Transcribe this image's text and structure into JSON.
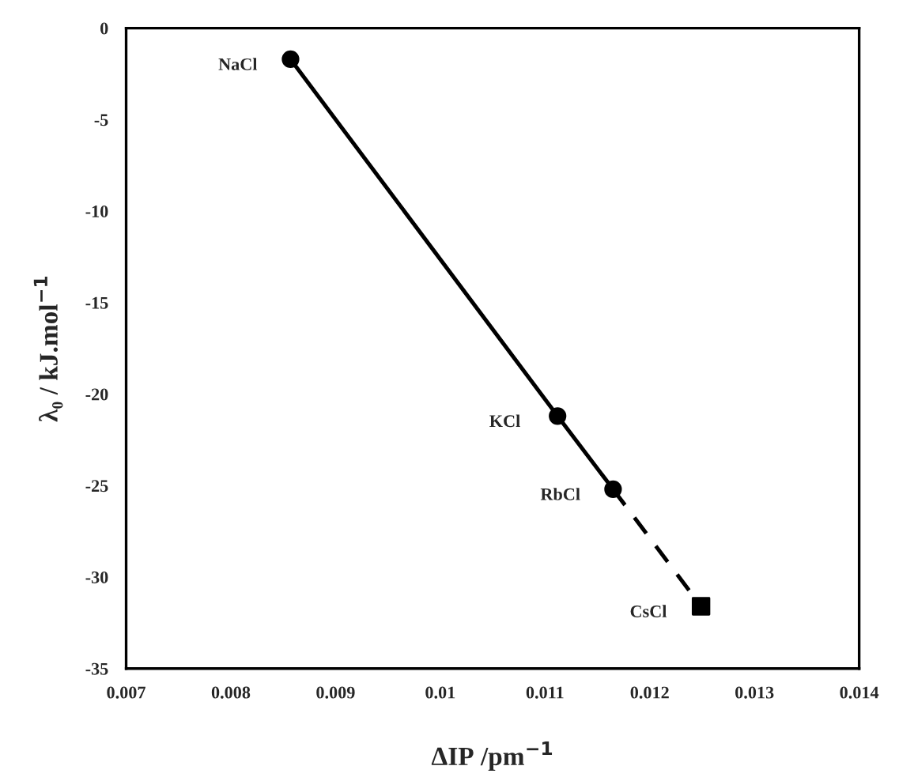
{
  "chart_data": {
    "type": "line",
    "xlabel": "ΔIP /pm$^{−1}$",
    "ylabel": "λ₀ / kJ.mol$^{−1}$",
    "series": [
      {
        "color": "#000000",
        "marker": "circle",
        "line_style": "solid",
        "x": [
          0.00857,
          0.01112,
          0.01165
        ],
        "values": [
          -1.7,
          -21.2,
          -25.2
        ]
      },
      {
        "type": "line",
        "color": "#000000",
        "marker": "none",
        "line_style": "dashed",
        "x": [
          0.01165,
          0.01249
        ],
        "values": [
          -25.2,
          -31.6
        ]
      },
      {
        "type": "scatter",
        "color": "#000000",
        "marker": "square",
        "x": [
          0.01249
        ],
        "values": [
          -31.6
        ]
      }
    ],
    "annotations": [
      {
        "text": "NaCl",
        "x": 0.00857,
        "y": -1.7
      },
      {
        "text": "KCl",
        "x": 0.01112,
        "y": -21.2
      },
      {
        "text": "RbCl",
        "x": 0.01165,
        "y": -25.2
      },
      {
        "text": "CsCl",
        "x": 0.01249,
        "y": -31.6
      }
    ],
    "xlim": [
      0.007,
      0.014
    ],
    "xticks": [
      0.007,
      0.008,
      0.009,
      0.01,
      0.011,
      0.012,
      0.013,
      0.014
    ],
    "ylim": [
      -35,
      0
    ],
    "yticks": [
      -35,
      -30,
      -25,
      -20,
      -15,
      -10,
      -5,
      0
    ],
    "grid": false,
    "legend": false
  }
}
